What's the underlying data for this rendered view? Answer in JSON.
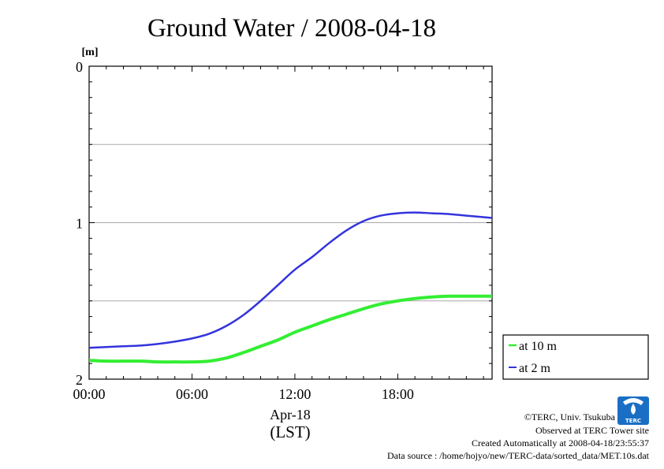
{
  "chart_data": {
    "type": "line",
    "title": "Ground Water / 2008-04-18",
    "ylabel": "[m]",
    "xlabel_date": "Apr-18",
    "xlabel_zone": "(LST)",
    "ylim": [
      0,
      2
    ],
    "y_inverted": true,
    "xlim": [
      0,
      23.5
    ],
    "x_unit": "hour",
    "x_ticks": [
      {
        "value": 0,
        "label": "00:00"
      },
      {
        "value": 6,
        "label": "06:00"
      },
      {
        "value": 12,
        "label": "12:00"
      },
      {
        "value": 18,
        "label": "18:00"
      }
    ],
    "y_ticks": [
      {
        "value": 0,
        "label": "0"
      },
      {
        "value": 1,
        "label": "1"
      },
      {
        "value": 2,
        "label": "2"
      }
    ],
    "grid": {
      "horizontal": [
        0.5,
        1.0,
        1.5
      ]
    },
    "legend": "right-bottom, outside plot",
    "series": [
      {
        "name": "at 10 m",
        "color": "#33ee33",
        "x": [
          0,
          1,
          2,
          3,
          4,
          5,
          6,
          7,
          8,
          9,
          10,
          11,
          12,
          13,
          14,
          15,
          16,
          17,
          18,
          19,
          20,
          21,
          22,
          23,
          23.5
        ],
        "y": [
          1.88,
          1.885,
          1.885,
          1.885,
          1.89,
          1.89,
          1.89,
          1.885,
          1.865,
          1.83,
          1.79,
          1.75,
          1.7,
          1.66,
          1.62,
          1.585,
          1.55,
          1.52,
          1.5,
          1.485,
          1.475,
          1.47,
          1.47,
          1.47,
          1.47
        ]
      },
      {
        "name": "at 2 m",
        "color": "#3333dd",
        "x": [
          0,
          1,
          2,
          3,
          4,
          5,
          6,
          7,
          8,
          9,
          10,
          11,
          12,
          13,
          14,
          15,
          16,
          17,
          18,
          19,
          20,
          21,
          22,
          23,
          23.5
        ],
        "y": [
          1.8,
          1.795,
          1.79,
          1.785,
          1.775,
          1.76,
          1.74,
          1.71,
          1.66,
          1.59,
          1.5,
          1.4,
          1.3,
          1.22,
          1.13,
          1.05,
          0.99,
          0.955,
          0.94,
          0.935,
          0.94,
          0.945,
          0.955,
          0.965,
          0.97
        ]
      }
    ]
  },
  "credits": {
    "copyright": "©TERC, Univ. Tsukuba",
    "observed": "Observed at TERC Tower site",
    "created": "Created Automatically at 2008-04-18/23:55:37",
    "source": "Data source : /home/hojyo/new/TERC-data/sorted_data/MET.10s.dat",
    "logo_text": "TERC",
    "logo_color": "#1a6fc4"
  }
}
